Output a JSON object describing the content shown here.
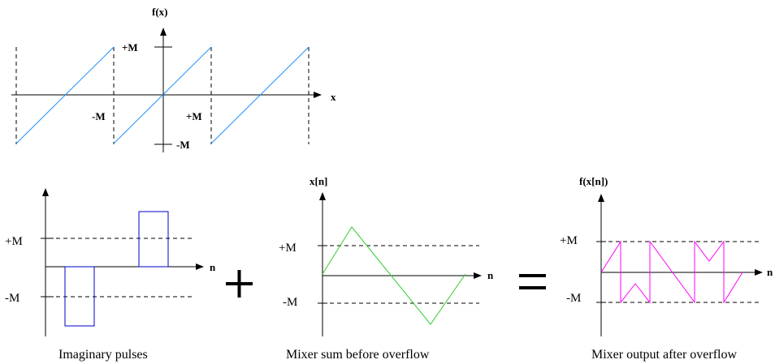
{
  "top_plot": {
    "y_axis_label": "f(x)",
    "x_axis_label": "x",
    "plus_m_label": "+M",
    "minus_m_label": "-M",
    "x_minus_m_label": "-M",
    "x_plus_m_label": "+M",
    "line_color": "#1e90ff"
  },
  "pulses_plot": {
    "x_axis_label": "n",
    "plus_m_label": "+M",
    "minus_m_label": "-M",
    "line_color": "#0000cc",
    "caption": "Imaginary pulses"
  },
  "plus_operator": "+",
  "sum_plot": {
    "y_axis_label": "x[n]",
    "x_axis_label": "n",
    "plus_m_label": "+M",
    "minus_m_label": "-M",
    "line_color": "#33cc33",
    "caption": "Mixer sum before overflow"
  },
  "equals_operator": "=",
  "output_plot": {
    "y_axis_label": "f(x[n])",
    "x_axis_label": "n",
    "plus_m_label": "+M",
    "minus_m_label": "-M",
    "line_color": "#ff00ff",
    "caption": "Mixer output after overflow"
  }
}
